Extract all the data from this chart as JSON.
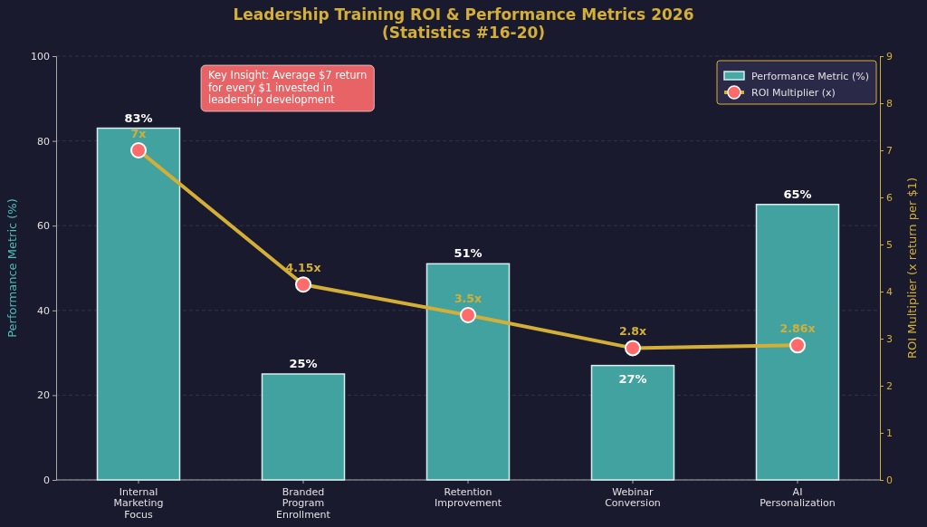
{
  "chart_data": {
    "type": "bar",
    "title": "Leadership Training ROI & Performance Metrics 2026",
    "subtitle": "(Statistics #16-20)",
    "categories": [
      "Internal Marketing Focus",
      "Branded Program Enrollment",
      "Retention Improvement",
      "Webinar Conversion",
      "AI Personalization"
    ],
    "series": [
      {
        "name": "Performance Metric (%)",
        "color": "#45aaa6",
        "values": [
          83,
          25,
          51,
          27,
          65
        ],
        "value_labels": [
          "83%",
          "25%",
          "51%",
          "27%",
          "65%"
        ]
      },
      {
        "name": "ROI Multiplier (x)",
        "type": "line",
        "axis": "y2",
        "color": "#d4af37",
        "colors": [
          "#ff6b6b",
          "#ff6b6b",
          "#ff6b6b",
          "#ff6b6b",
          "#ff6b6b"
        ],
        "values": [
          7,
          4.15,
          3.5,
          2.8,
          2.86
        ],
        "value_labels": [
          "7x",
          "4.15x",
          "3.5x",
          "2.8x",
          "2.86x"
        ]
      }
    ],
    "ylabel": "Performance Metric (%)",
    "y2label": "ROI Multiplier (x return per $1)",
    "ylim": [
      0,
      100
    ],
    "yticks": [
      0,
      20,
      40,
      60,
      80,
      100
    ],
    "y2lim": [
      0,
      9
    ],
    "y2ticks": [
      0,
      1,
      2,
      3,
      4,
      5,
      6,
      7,
      8,
      9
    ],
    "grid": "y",
    "legend": "top right",
    "marker": "circle",
    "annotations": [
      "Key Insight: Average $7 return for every $1 invested in leadership development"
    ]
  }
}
